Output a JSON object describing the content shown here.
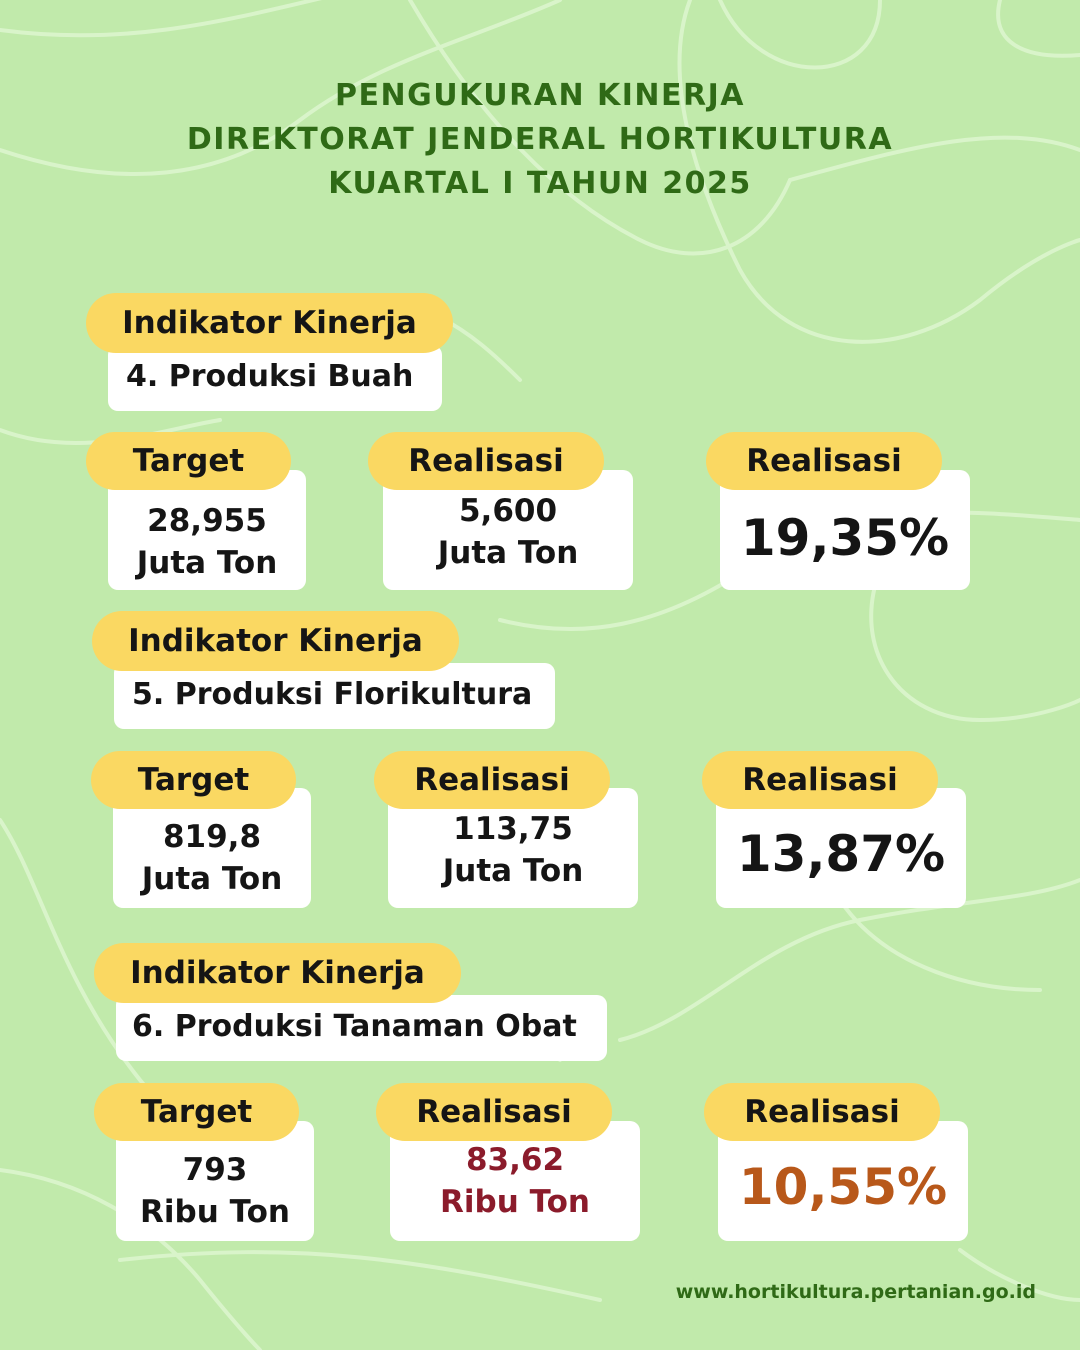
{
  "title": {
    "line1": "PENGUKURAN KINERJA",
    "line2": "DIREKTORAT JENDERAL HORTIKULTURA",
    "line3": "KUARTAL I TAHUN 2025"
  },
  "indicators": [
    {
      "heading": "Indikator Kinerja",
      "name": "4. Produksi Buah",
      "target_label": "Target",
      "target_value": "28,955",
      "target_unit": "Juta Ton",
      "realisasi_label": "Realisasi",
      "realisasi_value": "5,600",
      "realisasi_unit": "Juta Ton",
      "percent_label": "Realisasi",
      "percent_value": "19,35%"
    },
    {
      "heading": "Indikator Kinerja",
      "name": "5. Produksi Florikultura",
      "target_label": "Target",
      "target_value": "819,8",
      "target_unit": "Juta Ton",
      "realisasi_label": "Realisasi",
      "realisasi_value": "113,75",
      "realisasi_unit": "Juta Ton",
      "percent_label": "Realisasi",
      "percent_value": "13,87%"
    },
    {
      "heading": "Indikator Kinerja",
      "name": "6. Produksi Tanaman Obat",
      "target_label": "Target",
      "target_value": "793",
      "target_unit": "Ribu Ton",
      "realisasi_label": "Realisasi",
      "realisasi_value": "83,62",
      "realisasi_unit": "Ribu Ton",
      "percent_label": "Realisasi",
      "percent_value": "10,55%"
    }
  ],
  "colors": {
    "background": "#c1eaab",
    "title": "#2f6a16",
    "pill": "#fad862",
    "realisasi_highlight": "#8b1b2b",
    "percent_highlight": "#b8581a"
  },
  "footer": "www.hortikultura.pertanian.go.id"
}
